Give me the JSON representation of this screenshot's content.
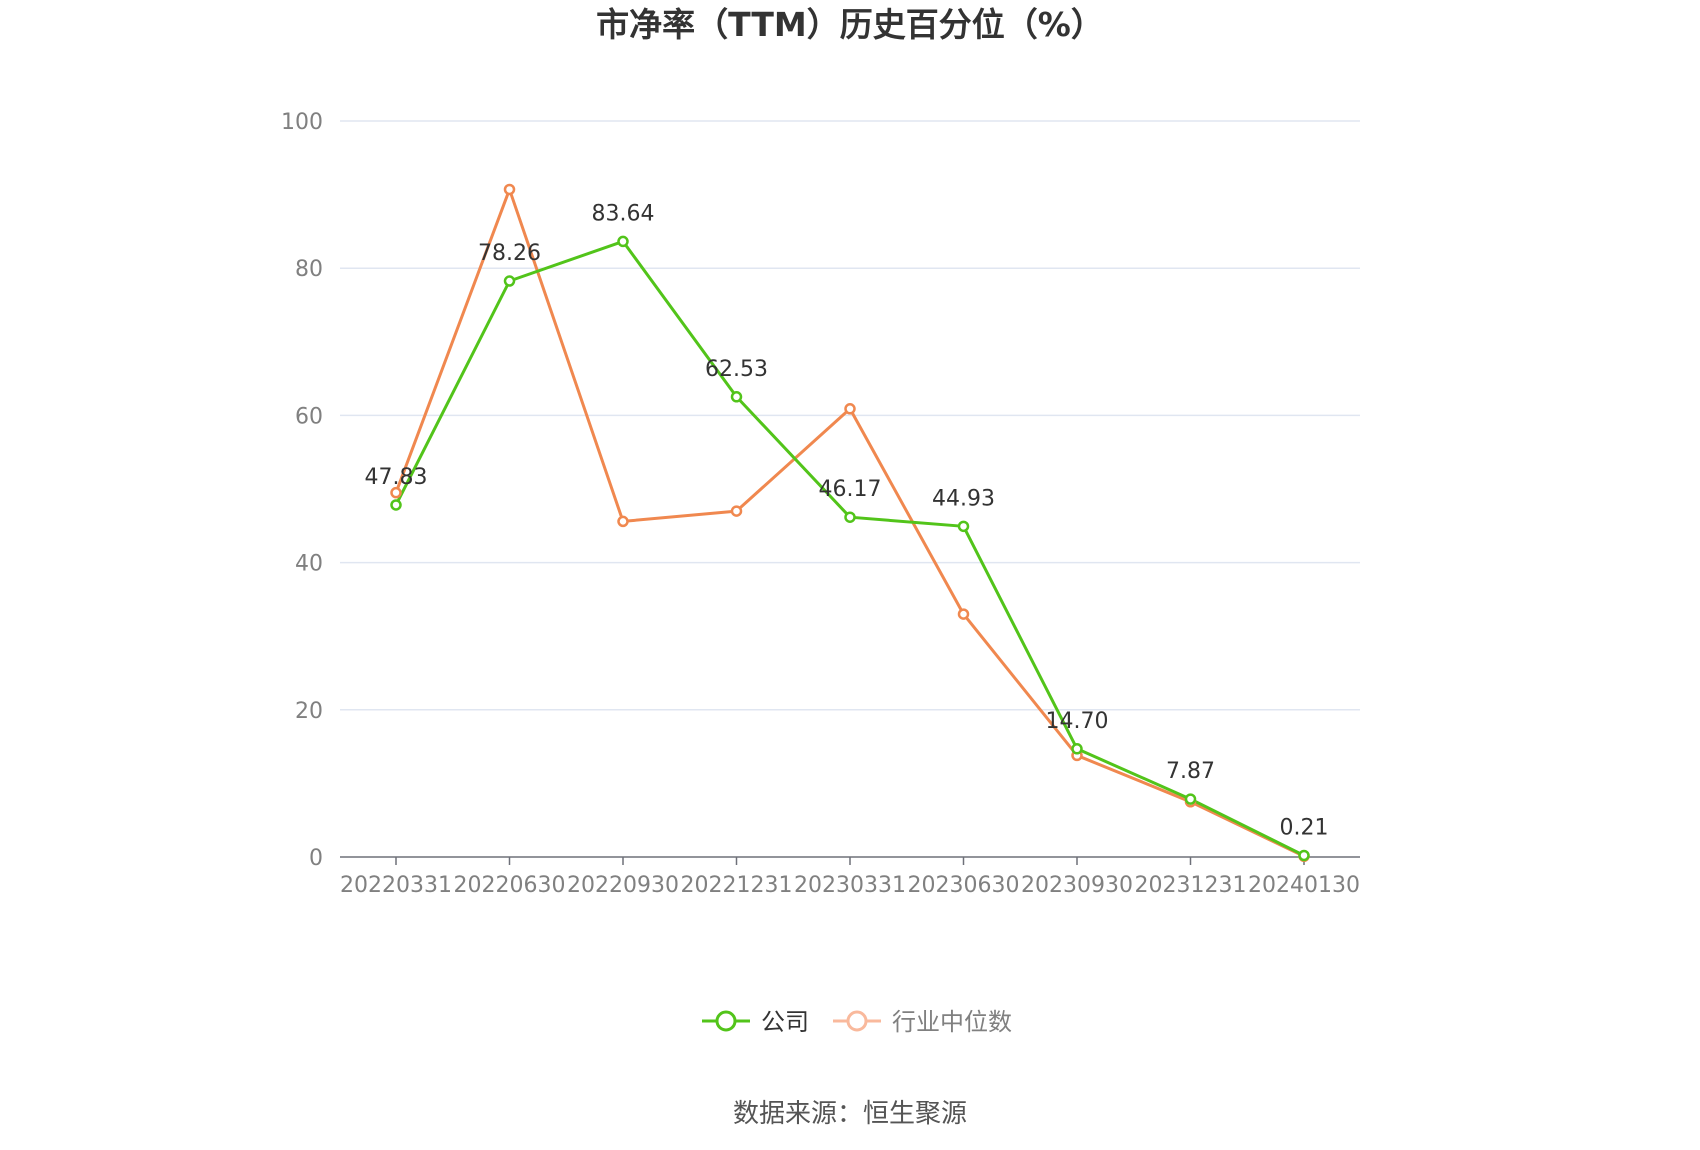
{
  "chart_data": {
    "type": "line",
    "title": "市净率（TTM）历史百分位（%）",
    "categories": [
      "20220331",
      "20220630",
      "20220930",
      "20221231",
      "20230331",
      "20230630",
      "20230930",
      "20231231",
      "20240130"
    ],
    "ylim": [
      0,
      100
    ],
    "yticks": [
      0,
      20,
      40,
      60,
      80,
      100
    ],
    "grid": true,
    "legend_position": "bottom",
    "series": [
      {
        "name": "公司",
        "color": "#52c41a",
        "labeled": true,
        "values": [
          47.83,
          78.26,
          83.64,
          62.53,
          46.17,
          44.93,
          14.7,
          7.87,
          0.21
        ],
        "labels": [
          "47.83",
          "78.26",
          "83.64",
          "62.53",
          "46.17",
          "44.93",
          "14.70",
          "7.87",
          "0.21"
        ]
      },
      {
        "name": "行业中位数",
        "color": "#f0884f",
        "labeled": false,
        "values": [
          49.5,
          90.7,
          45.6,
          47.0,
          60.9,
          33.0,
          13.8,
          7.5,
          0.1
        ]
      }
    ]
  },
  "legend": {
    "items": [
      {
        "name": "公司",
        "color": "#52c41a",
        "text_color": "#333333"
      },
      {
        "name": "行业中位数",
        "color": "#f9b99c",
        "text_color": "#808080"
      }
    ]
  },
  "footer": {
    "source": "数据来源：恒生聚源"
  }
}
